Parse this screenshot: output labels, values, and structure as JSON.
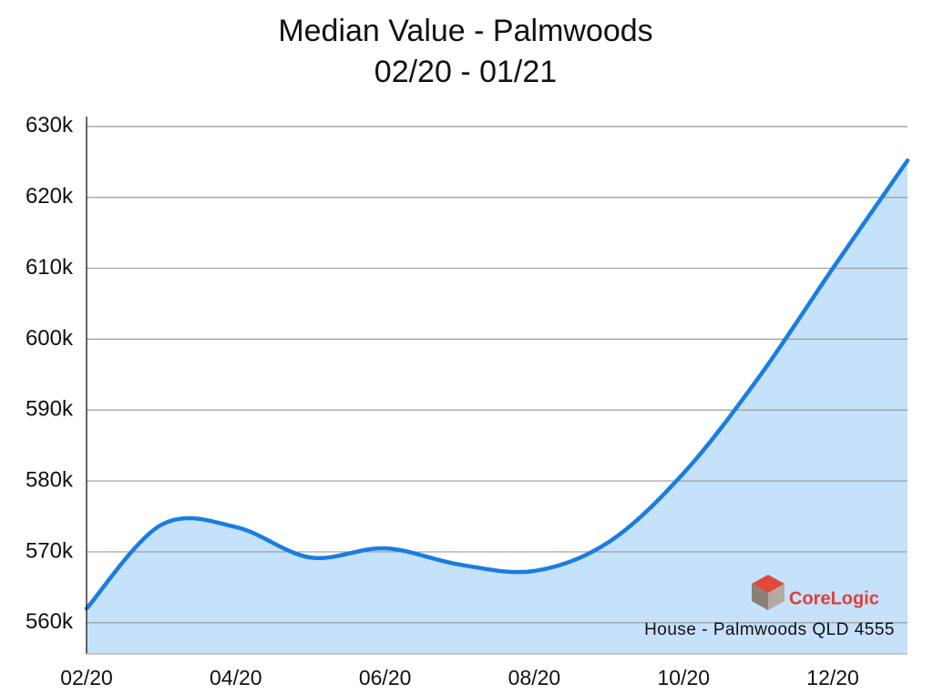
{
  "chart_data": {
    "type": "area",
    "title": "Median Value - Palmwoods",
    "subtitle": "02/20 - 01/21",
    "categories": [
      "02/20",
      null,
      "04/20",
      null,
      "06/20",
      null,
      "08/20",
      null,
      "10/20",
      null,
      "12/20",
      null
    ],
    "values": [
      562000,
      573800,
      573500,
      569200,
      570500,
      568200,
      567300,
      571400,
      581100,
      594500,
      610000,
      625200
    ],
    "color": "#1a7de0",
    "fill_color": "#c6e1fa",
    "ylim": [
      555600,
      631400
    ],
    "yticks": [
      {
        "value": 560000,
        "label": "560k"
      },
      {
        "value": 570000,
        "label": "570k"
      },
      {
        "value": 580000,
        "label": "580k"
      },
      {
        "value": 590000,
        "label": "590k"
      },
      {
        "value": 600000,
        "label": "600k"
      },
      {
        "value": 610000,
        "label": "610k"
      },
      {
        "value": 620000,
        "label": "620k"
      },
      {
        "value": 630000,
        "label": "630k"
      }
    ],
    "grid": true,
    "annotation": "House - Palmwoods QLD 4555",
    "logo": "CoreLogic"
  }
}
